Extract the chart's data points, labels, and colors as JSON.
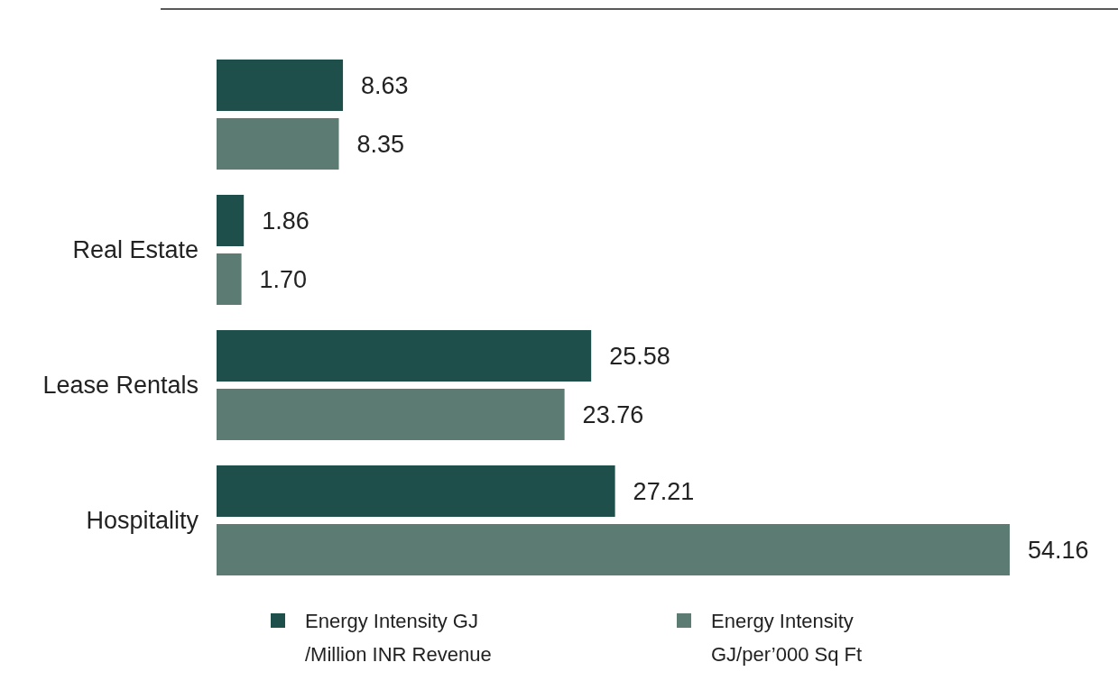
{
  "chart_data": {
    "type": "bar",
    "orientation": "horizontal",
    "categories": [
      null,
      "Real Estate",
      "Lease Rentals",
      "Hospitality"
    ],
    "series": [
      {
        "name": "Energy Intensity GJ /Million INR Revenue",
        "color": "#1f4f4a",
        "values": [
          8.63,
          1.86,
          25.58,
          27.21
        ],
        "value_labels": [
          "8.63",
          "1.86",
          "25.58",
          "27.21"
        ]
      },
      {
        "name": "Energy Intensity GJ/per’000 Sq Ft",
        "color": "#5c7b73",
        "values": [
          8.35,
          1.7,
          23.76,
          54.16
        ],
        "value_labels": [
          "8.35",
          "1.70",
          "23.76",
          "54.16"
        ]
      }
    ],
    "legend": "bottom",
    "grid": false
  }
}
